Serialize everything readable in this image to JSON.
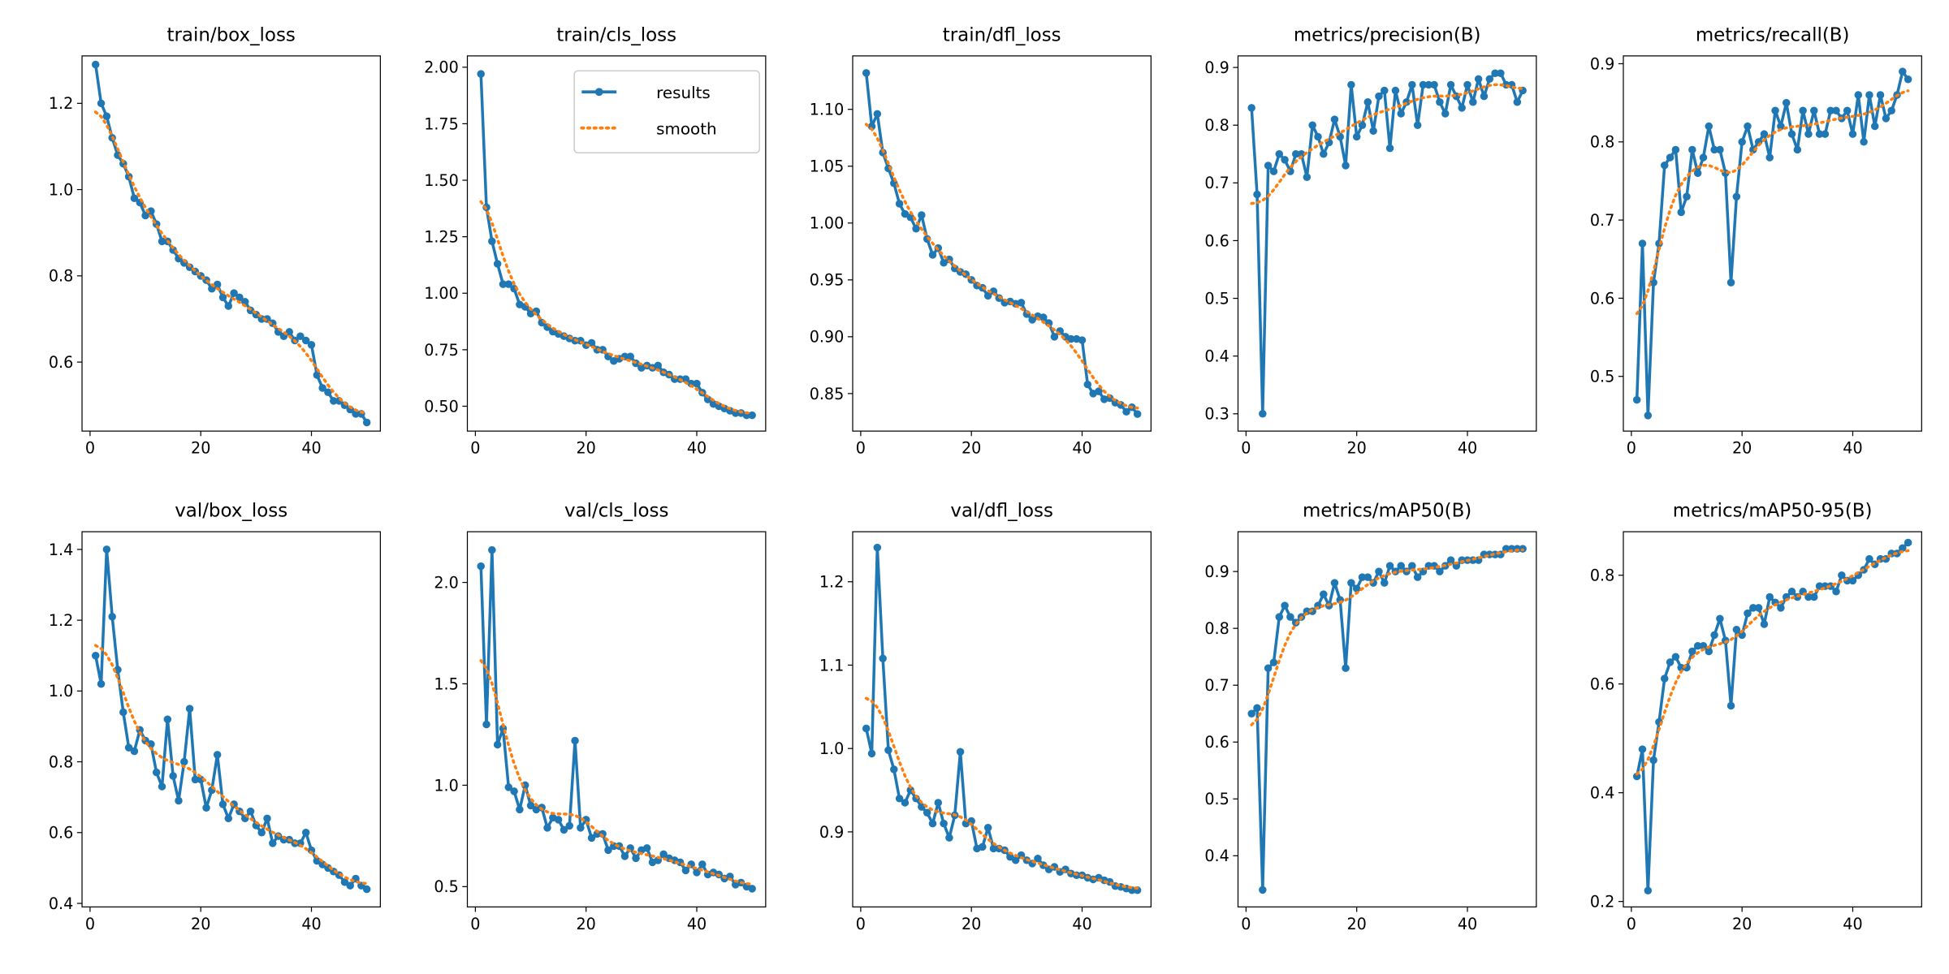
{
  "legend": {
    "results": "results",
    "smooth": "smooth",
    "placement": "upper-right of train/cls_loss"
  },
  "colors": {
    "results": "#1f77b4",
    "smooth": "#ff7f0e"
  },
  "chart_data": [
    {
      "type": "line",
      "title": "train/box_loss",
      "x_range": [
        1,
        50
      ],
      "ylim": [
        0.44,
        1.31
      ],
      "yticks": [
        "0.6",
        "0.8",
        "1.0",
        "1.2"
      ],
      "ytick_values": [
        0.6,
        0.8,
        1.0,
        1.2
      ],
      "xticks": [
        "0",
        "20",
        "40"
      ],
      "values": [
        1.29,
        1.2,
        1.17,
        1.12,
        1.08,
        1.06,
        1.03,
        0.98,
        0.97,
        0.94,
        0.95,
        0.92,
        0.88,
        0.88,
        0.86,
        0.84,
        0.83,
        0.82,
        0.81,
        0.8,
        0.79,
        0.77,
        0.78,
        0.75,
        0.73,
        0.76,
        0.75,
        0.74,
        0.72,
        0.71,
        0.7,
        0.7,
        0.69,
        0.67,
        0.66,
        0.67,
        0.65,
        0.66,
        0.65,
        0.64,
        0.57,
        0.54,
        0.53,
        0.51,
        0.51,
        0.5,
        0.49,
        0.48,
        0.48,
        0.46
      ]
    },
    {
      "type": "line",
      "title": "train/cls_loss",
      "x_range": [
        1,
        50
      ],
      "ylim": [
        0.39,
        2.05
      ],
      "yticks": [
        "0.50",
        "0.75",
        "1.00",
        "1.25",
        "1.50",
        "1.75",
        "2.00"
      ],
      "ytick_values": [
        0.5,
        0.75,
        1.0,
        1.25,
        1.5,
        1.75,
        2.0
      ],
      "xticks": [
        "0",
        "20",
        "40"
      ],
      "values": [
        1.97,
        1.38,
        1.23,
        1.13,
        1.04,
        1.04,
        1.02,
        0.95,
        0.94,
        0.91,
        0.92,
        0.87,
        0.85,
        0.83,
        0.82,
        0.81,
        0.8,
        0.79,
        0.79,
        0.77,
        0.78,
        0.75,
        0.75,
        0.72,
        0.7,
        0.71,
        0.72,
        0.72,
        0.69,
        0.67,
        0.68,
        0.67,
        0.68,
        0.65,
        0.64,
        0.62,
        0.62,
        0.62,
        0.6,
        0.6,
        0.56,
        0.53,
        0.51,
        0.5,
        0.49,
        0.48,
        0.47,
        0.47,
        0.46,
        0.46
      ]
    },
    {
      "type": "line",
      "title": "train/dfl_loss",
      "x_range": [
        1,
        50
      ],
      "ylim": [
        0.817,
        1.147
      ],
      "yticks": [
        "0.85",
        "0.90",
        "0.95",
        "1.00",
        "1.05",
        "1.10"
      ],
      "ytick_values": [
        0.85,
        0.9,
        0.95,
        1.0,
        1.05,
        1.1
      ],
      "xticks": [
        "0",
        "20",
        "40"
      ],
      "values": [
        1.132,
        1.085,
        1.096,
        1.062,
        1.048,
        1.035,
        1.017,
        1.008,
        1.005,
        0.995,
        1.007,
        0.986,
        0.972,
        0.978,
        0.965,
        0.968,
        0.96,
        0.957,
        0.955,
        0.95,
        0.945,
        0.943,
        0.936,
        0.94,
        0.934,
        0.93,
        0.931,
        0.929,
        0.93,
        0.92,
        0.915,
        0.918,
        0.917,
        0.912,
        0.9,
        0.905,
        0.9,
        0.898,
        0.898,
        0.897,
        0.858,
        0.85,
        0.852,
        0.845,
        0.846,
        0.842,
        0.84,
        0.834,
        0.838,
        0.832
      ]
    },
    {
      "type": "line",
      "title": "metrics/precision(B)",
      "x_range": [
        1,
        50
      ],
      "ylim": [
        0.27,
        0.92
      ],
      "yticks": [
        "0.3",
        "0.4",
        "0.5",
        "0.6",
        "0.7",
        "0.8",
        "0.9"
      ],
      "ytick_values": [
        0.3,
        0.4,
        0.5,
        0.6,
        0.7,
        0.8,
        0.9
      ],
      "xticks": [
        "0",
        "20",
        "40"
      ],
      "values": [
        0.83,
        0.68,
        0.3,
        0.73,
        0.72,
        0.75,
        0.74,
        0.72,
        0.75,
        0.75,
        0.71,
        0.8,
        0.78,
        0.75,
        0.77,
        0.81,
        0.78,
        0.73,
        0.87,
        0.78,
        0.8,
        0.84,
        0.79,
        0.85,
        0.86,
        0.76,
        0.86,
        0.82,
        0.84,
        0.87,
        0.8,
        0.87,
        0.87,
        0.87,
        0.84,
        0.82,
        0.87,
        0.85,
        0.83,
        0.87,
        0.84,
        0.88,
        0.85,
        0.88,
        0.89,
        0.89,
        0.87,
        0.87,
        0.84,
        0.86
      ]
    },
    {
      "type": "line",
      "title": "metrics/recall(B)",
      "x_range": [
        1,
        50
      ],
      "ylim": [
        0.43,
        0.91
      ],
      "yticks": [
        "0.5",
        "0.6",
        "0.7",
        "0.8",
        "0.9"
      ],
      "ytick_values": [
        0.5,
        0.6,
        0.7,
        0.8,
        0.9
      ],
      "xticks": [
        "0",
        "20",
        "40"
      ],
      "values": [
        0.47,
        0.67,
        0.45,
        0.62,
        0.67,
        0.77,
        0.78,
        0.79,
        0.71,
        0.73,
        0.79,
        0.76,
        0.78,
        0.82,
        0.79,
        0.79,
        0.76,
        0.62,
        0.73,
        0.8,
        0.82,
        0.79,
        0.8,
        0.81,
        0.78,
        0.84,
        0.82,
        0.85,
        0.81,
        0.79,
        0.84,
        0.81,
        0.84,
        0.81,
        0.81,
        0.84,
        0.84,
        0.83,
        0.84,
        0.81,
        0.86,
        0.8,
        0.86,
        0.82,
        0.86,
        0.83,
        0.84,
        0.86,
        0.89,
        0.88
      ]
    },
    {
      "type": "line",
      "title": "val/box_loss",
      "x_range": [
        1,
        50
      ],
      "ylim": [
        0.39,
        1.45
      ],
      "yticks": [
        "0.4",
        "0.6",
        "0.8",
        "1.0",
        "1.2",
        "1.4"
      ],
      "ytick_values": [
        0.4,
        0.6,
        0.8,
        1.0,
        1.2,
        1.4
      ],
      "xticks": [
        "0",
        "20",
        "40"
      ],
      "values": [
        1.1,
        1.02,
        1.4,
        1.21,
        1.06,
        0.94,
        0.84,
        0.83,
        0.89,
        0.86,
        0.85,
        0.77,
        0.73,
        0.92,
        0.76,
        0.69,
        0.8,
        0.95,
        0.75,
        0.75,
        0.67,
        0.72,
        0.82,
        0.68,
        0.64,
        0.68,
        0.66,
        0.64,
        0.66,
        0.62,
        0.6,
        0.64,
        0.57,
        0.59,
        0.58,
        0.58,
        0.57,
        0.57,
        0.6,
        0.55,
        0.52,
        0.51,
        0.5,
        0.49,
        0.48,
        0.46,
        0.45,
        0.47,
        0.45,
        0.44
      ]
    },
    {
      "type": "line",
      "title": "val/cls_loss",
      "x_range": [
        1,
        50
      ],
      "ylim": [
        0.4,
        2.25
      ],
      "yticks": [
        "0.5",
        "1.0",
        "1.5",
        "2.0"
      ],
      "ytick_values": [
        0.5,
        1.0,
        1.5,
        2.0
      ],
      "xticks": [
        "0",
        "20",
        "40"
      ],
      "values": [
        2.08,
        1.3,
        2.16,
        1.2,
        1.28,
        0.99,
        0.97,
        0.88,
        1.0,
        0.9,
        0.88,
        0.89,
        0.79,
        0.84,
        0.83,
        0.78,
        0.8,
        1.22,
        0.79,
        0.83,
        0.74,
        0.76,
        0.76,
        0.68,
        0.7,
        0.7,
        0.65,
        0.69,
        0.64,
        0.68,
        0.69,
        0.62,
        0.63,
        0.66,
        0.64,
        0.63,
        0.62,
        0.58,
        0.61,
        0.57,
        0.61,
        0.56,
        0.57,
        0.56,
        0.54,
        0.55,
        0.51,
        0.52,
        0.5,
        0.49
      ]
    },
    {
      "type": "line",
      "title": "val/dfl_loss",
      "x_range": [
        1,
        50
      ],
      "ylim": [
        0.81,
        1.26
      ],
      "yticks": [
        "0.9",
        "1.0",
        "1.1",
        "1.2"
      ],
      "ytick_values": [
        0.9,
        1.0,
        1.1,
        1.2
      ],
      "xticks": [
        "0",
        "20",
        "40"
      ],
      "values": [
        1.024,
        0.994,
        1.241,
        1.108,
        0.998,
        0.975,
        0.94,
        0.935,
        0.95,
        0.94,
        0.93,
        0.923,
        0.91,
        0.935,
        0.91,
        0.893,
        0.92,
        0.996,
        0.91,
        0.913,
        0.88,
        0.882,
        0.905,
        0.88,
        0.88,
        0.878,
        0.87,
        0.866,
        0.872,
        0.866,
        0.862,
        0.868,
        0.86,
        0.855,
        0.858,
        0.852,
        0.855,
        0.85,
        0.848,
        0.848,
        0.845,
        0.843,
        0.845,
        0.842,
        0.84,
        0.835,
        0.834,
        0.832,
        0.83,
        0.83
      ]
    },
    {
      "type": "line",
      "title": "metrics/mAP50(B)",
      "x_range": [
        1,
        50
      ],
      "ylim": [
        0.31,
        0.97
      ],
      "yticks": [
        "0.4",
        "0.5",
        "0.6",
        "0.7",
        "0.8",
        "0.9"
      ],
      "ytick_values": [
        0.4,
        0.5,
        0.6,
        0.7,
        0.8,
        0.9
      ],
      "xticks": [
        "0",
        "20",
        "40"
      ],
      "values": [
        0.65,
        0.66,
        0.34,
        0.73,
        0.74,
        0.82,
        0.84,
        0.82,
        0.81,
        0.82,
        0.83,
        0.83,
        0.84,
        0.86,
        0.84,
        0.88,
        0.85,
        0.73,
        0.88,
        0.87,
        0.89,
        0.89,
        0.88,
        0.9,
        0.88,
        0.91,
        0.9,
        0.91,
        0.9,
        0.91,
        0.89,
        0.9,
        0.91,
        0.91,
        0.9,
        0.91,
        0.92,
        0.91,
        0.92,
        0.92,
        0.92,
        0.92,
        0.93,
        0.93,
        0.93,
        0.93,
        0.94,
        0.94,
        0.94,
        0.94
      ]
    },
    {
      "type": "line",
      "title": "metrics/mAP50-95(B)",
      "x_range": [
        1,
        50
      ],
      "ylim": [
        0.19,
        0.88
      ],
      "yticks": [
        "0.2",
        "0.4",
        "0.6",
        "0.8"
      ],
      "ytick_values": [
        0.2,
        0.4,
        0.6,
        0.8
      ],
      "xticks": [
        "0",
        "20",
        "40"
      ],
      "values": [
        0.43,
        0.48,
        0.22,
        0.46,
        0.53,
        0.61,
        0.64,
        0.65,
        0.63,
        0.63,
        0.66,
        0.67,
        0.67,
        0.66,
        0.69,
        0.72,
        0.68,
        0.56,
        0.7,
        0.69,
        0.73,
        0.74,
        0.74,
        0.71,
        0.76,
        0.75,
        0.74,
        0.76,
        0.77,
        0.76,
        0.77,
        0.76,
        0.76,
        0.78,
        0.78,
        0.78,
        0.77,
        0.8,
        0.79,
        0.79,
        0.8,
        0.81,
        0.83,
        0.82,
        0.83,
        0.83,
        0.84,
        0.84,
        0.85,
        0.86
      ]
    }
  ]
}
